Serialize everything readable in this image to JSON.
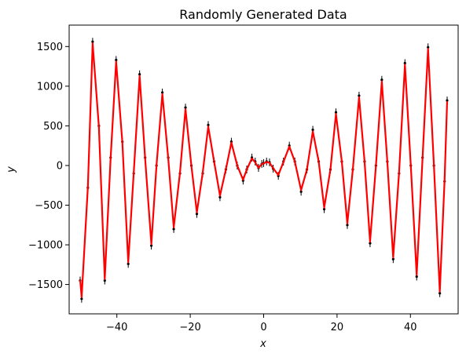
{
  "chart_data": {
    "type": "line",
    "title": "Randomly Generated Data",
    "xlabel": "x",
    "ylabel": "y",
    "xlim": [
      -53,
      53
    ],
    "ylim": [
      -1870,
      1770
    ],
    "x_ticks": [
      -40,
      -20,
      0,
      20,
      40
    ],
    "x_tick_labels": [
      "−40",
      "−20",
      "0",
      "20",
      "40"
    ],
    "y_ticks": [
      -1500,
      -1000,
      -500,
      0,
      500,
      1000,
      1500
    ],
    "y_tick_labels": [
      "−1500",
      "−1000",
      "−500",
      "0",
      "500",
      "1000",
      "1500"
    ],
    "grid": false,
    "legend": "none",
    "series": [
      {
        "role": "data",
        "style": "black markers with small vertical error bars",
        "color": "#000000",
        "sampled_points": [
          [
            -50.0,
            -1450
          ],
          [
            -49.6,
            -1680
          ],
          [
            -47.9,
            -280
          ],
          [
            -46.6,
            1560
          ],
          [
            -44.9,
            500
          ],
          [
            -43.3,
            -1450
          ],
          [
            -41.7,
            100
          ],
          [
            -40.2,
            1330
          ],
          [
            -38.5,
            300
          ],
          [
            -36.9,
            -1240
          ],
          [
            -35.4,
            -100
          ],
          [
            -33.8,
            1150
          ],
          [
            -32.3,
            100
          ],
          [
            -30.6,
            -1010
          ],
          [
            -29.2,
            0
          ],
          [
            -27.6,
            920
          ],
          [
            -26.0,
            100
          ],
          [
            -24.5,
            -800
          ],
          [
            -22.8,
            -100
          ],
          [
            -21.3,
            730
          ],
          [
            -19.7,
            0
          ],
          [
            -18.2,
            -610
          ],
          [
            -16.6,
            -100
          ],
          [
            -15.1,
            510
          ],
          [
            -13.5,
            50
          ],
          [
            -11.9,
            -400
          ],
          [
            -10.3,
            -50
          ],
          [
            -8.8,
            300
          ],
          [
            -7.2,
            0
          ],
          [
            -5.6,
            -190
          ],
          [
            -4.6,
            -50
          ],
          [
            -3.2,
            100
          ],
          [
            -2.3,
            50
          ],
          [
            -1.4,
            -30
          ],
          [
            -0.5,
            20
          ],
          [
            0.0,
            30
          ],
          [
            0.8,
            50
          ],
          [
            1.6,
            40
          ],
          [
            2.6,
            -40
          ],
          [
            4.0,
            -130
          ],
          [
            5.4,
            50
          ],
          [
            7.0,
            250
          ],
          [
            8.5,
            50
          ],
          [
            10.2,
            -330
          ],
          [
            11.8,
            -50
          ],
          [
            13.4,
            450
          ],
          [
            15.0,
            50
          ],
          [
            16.5,
            -550
          ],
          [
            18.2,
            -50
          ],
          [
            19.7,
            670
          ],
          [
            21.3,
            50
          ],
          [
            22.8,
            -750
          ],
          [
            24.3,
            -50
          ],
          [
            26.0,
            880
          ],
          [
            27.5,
            50
          ],
          [
            29.0,
            -980
          ],
          [
            30.6,
            0
          ],
          [
            32.2,
            1080
          ],
          [
            33.7,
            50
          ],
          [
            35.3,
            -1180
          ],
          [
            36.9,
            -100
          ],
          [
            38.5,
            1290
          ],
          [
            40.1,
            0
          ],
          [
            41.7,
            -1400
          ],
          [
            43.3,
            100
          ],
          [
            44.8,
            1490
          ],
          [
            46.4,
            0
          ],
          [
            48.0,
            -1610
          ],
          [
            49.3,
            -200
          ],
          [
            50.0,
            820
          ]
        ]
      },
      {
        "role": "fit",
        "style": "solid line",
        "color": "#ff0000",
        "x": [
          -50.0,
          -49.6,
          -47.9,
          -46.6,
          -44.9,
          -43.3,
          -41.7,
          -40.2,
          -38.5,
          -36.9,
          -35.4,
          -33.8,
          -32.3,
          -30.6,
          -29.2,
          -27.6,
          -26.0,
          -24.5,
          -22.8,
          -21.3,
          -19.7,
          -18.2,
          -16.6,
          -15.1,
          -13.5,
          -11.9,
          -10.3,
          -8.8,
          -7.2,
          -5.6,
          -4.6,
          -3.2,
          -2.3,
          -1.4,
          -0.5,
          0.0,
          0.8,
          1.6,
          2.6,
          4.0,
          5.4,
          7.0,
          8.5,
          10.2,
          11.8,
          13.4,
          15.0,
          16.5,
          18.2,
          19.7,
          21.3,
          22.8,
          24.3,
          26.0,
          27.5,
          29.0,
          30.6,
          32.2,
          33.7,
          35.3,
          36.9,
          38.5,
          40.1,
          41.7,
          43.3,
          44.8,
          46.4,
          48.0,
          49.3,
          50.0
        ],
        "y": [
          -1440,
          -1660,
          -270,
          1540,
          490,
          -1430,
          90,
          1310,
          290,
          -1220,
          -90,
          1130,
          90,
          -990,
          0,
          900,
          90,
          -780,
          -90,
          710,
          0,
          -590,
          -90,
          490,
          50,
          -380,
          -50,
          290,
          0,
          -180,
          -50,
          90,
          40,
          -30,
          20,
          25,
          45,
          35,
          -35,
          -120,
          45,
          240,
          50,
          -310,
          -50,
          430,
          50,
          -530,
          -50,
          650,
          50,
          -730,
          -50,
          860,
          50,
          -960,
          0,
          1060,
          50,
          -1160,
          -90,
          1270,
          0,
          -1380,
          90,
          1470,
          0,
          -1590,
          -190,
          810
        ]
      }
    ]
  }
}
